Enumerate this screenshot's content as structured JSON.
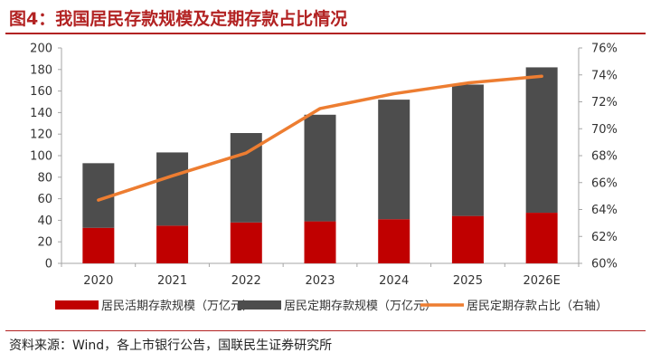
{
  "page_title": "图4：我国居民存款规模及定期存款占比情况",
  "source": "资料来源：Wind，各上市银行公告，国联民生证券研究所",
  "colors": {
    "title": "#b22222",
    "demand": "#c00000",
    "time": "#4d4d4d",
    "ratio_line": "#ed7d31",
    "axis": "#a6a6a6",
    "text": "#333333"
  },
  "chart_data": {
    "type": "bar",
    "stacked": true,
    "title": "我国居民存款规模及定期存款占比情况",
    "categories": [
      "2020",
      "2021",
      "2022",
      "2023",
      "2024",
      "2025",
      "2026E"
    ],
    "y_ticks": [
      "0",
      "20",
      "40",
      "60",
      "80",
      "100",
      "120",
      "140",
      "160",
      "180",
      "200"
    ],
    "y2_ticks": [
      "60%",
      "62%",
      "64%",
      "66%",
      "68%",
      "70%",
      "72%",
      "74%",
      "76%"
    ],
    "ylim": [
      0,
      200
    ],
    "y2lim": [
      60,
      76
    ],
    "series": [
      {
        "name": "居民活期存款规模（万亿元）",
        "kind": "bar",
        "axis": "left",
        "values": [
          33,
          35,
          38,
          39,
          41,
          44,
          47
        ]
      },
      {
        "name": "居民定期存款规模（万亿元）",
        "kind": "bar",
        "axis": "left",
        "values": [
          60,
          68,
          83,
          99,
          111,
          122,
          135
        ]
      },
      {
        "name": "居民定期存款占比（右轴）",
        "kind": "line",
        "axis": "right",
        "values": [
          64.7,
          66.5,
          68.2,
          71.5,
          72.6,
          73.4,
          73.9
        ]
      }
    ],
    "legend_position": "bottom"
  }
}
